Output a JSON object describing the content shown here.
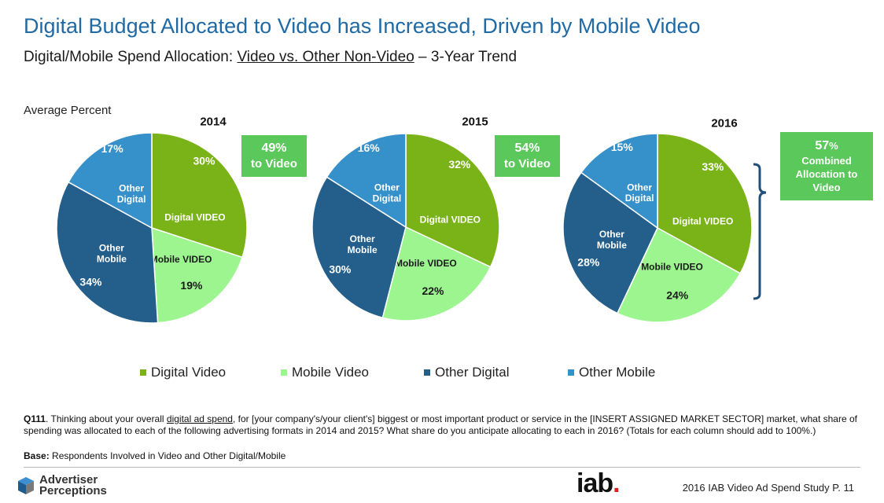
{
  "header": {
    "title": "Digital Budget Allocated to Video has Increased, Driven by Mobile Video",
    "subtitle_pre": "Digital/Mobile Spend Allocation: ",
    "subtitle_underlined": "Video vs. Other Non-Video",
    "subtitle_post": " – 3-Year Trend",
    "axis_note": "Average Percent"
  },
  "colors": {
    "digital_video": "#7ab317",
    "mobile_video": "#9cf58f",
    "other_mobile": "#245f8c",
    "other_digital": "#3690c9",
    "callout": "#5ac85a",
    "title": "#1f6aa5"
  },
  "chart_data": [
    {
      "type": "pie",
      "title": "2014",
      "slices": [
        {
          "label": "Digital VIDEO",
          "value": 30,
          "value_label": "30%"
        },
        {
          "label": "Mobile VIDEO",
          "value": 19,
          "value_label": "19%"
        },
        {
          "label": "Other Mobile",
          "value": 34,
          "value_label": "34%"
        },
        {
          "label": "Other Digital",
          "value": 17,
          "value_label": "17%"
        }
      ],
      "callout": {
        "value": "49%",
        "text": "to Video"
      }
    },
    {
      "type": "pie",
      "title": "2015",
      "slices": [
        {
          "label": "Digital VIDEO",
          "value": 32,
          "value_label": "32%"
        },
        {
          "label": "Mobile VIDEO",
          "value": 22,
          "value_label": "22%"
        },
        {
          "label": "Other Mobile",
          "value": 30,
          "value_label": "30%"
        },
        {
          "label": "Other Digital",
          "value": 16,
          "value_label": "16%"
        }
      ],
      "callout": {
        "value": "54%",
        "text": "to Video"
      }
    },
    {
      "type": "pie",
      "title": "2016",
      "slices": [
        {
          "label": "Digital VIDEO",
          "value": 33,
          "value_label": "33%"
        },
        {
          "label": "Mobile VIDEO",
          "value": 24,
          "value_label": "24%"
        },
        {
          "label": "Other Mobile",
          "value": 28,
          "value_label": "28%"
        },
        {
          "label": "Other Digital",
          "value": 15,
          "value_label": "15%"
        }
      ],
      "callout": {
        "value": "57",
        "value_unit": "%",
        "text": "Combined Allocation to Video"
      }
    }
  ],
  "legend": [
    {
      "label": "Digital Video",
      "color": "#7ab317"
    },
    {
      "label": "Mobile Video",
      "color": "#9cf58f"
    },
    {
      "label": "Other Digital",
      "color": "#245f8c"
    },
    {
      "label": "Other Mobile",
      "color": "#3690c9"
    }
  ],
  "footnote": {
    "qnum": "Q111",
    "part1": ". Thinking about your overall ",
    "underlined": "digital ad spend",
    "part2": ", for [your company's/your client's] biggest or most important product or service in the [INSERT ASSIGNED MARKET SECTOR] market, what share of spending was allocated to each of the following advertising formats in 2014 and 2015?  What share do you anticipate allocating to each in 2016? (Totals for each column should add to 100%.)",
    "base_label": "Base:",
    "base_text": "  Respondents Involved in Video and Other Digital/Mobile"
  },
  "footer": {
    "brand_line1": "Advertiser",
    "brand_line2": "Perceptions",
    "iab": "iab",
    "iab_dot": ".",
    "study": "2016 IAB Video Ad Spend Study  P.  11"
  }
}
